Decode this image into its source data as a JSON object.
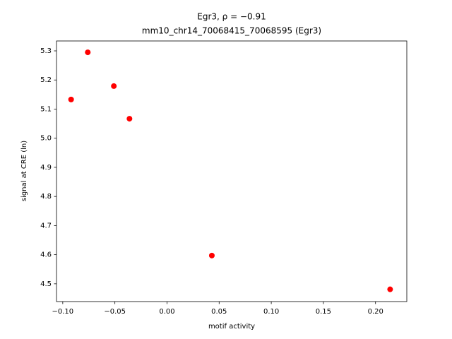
{
  "chart_data": {
    "type": "scatter",
    "title": "Egr3, ρ = −0.91",
    "subtitle": "mm10_chr14_70068415_70068595 (Egr3)",
    "x_label": "motif activity",
    "y_label": "signal at CRE (ln)",
    "color": "#ff0000",
    "x": [
      -0.092,
      -0.076,
      -0.051,
      -0.036,
      0.043,
      0.214
    ],
    "y": [
      5.133,
      5.295,
      5.179,
      5.067,
      4.597,
      4.481
    ],
    "xlim": [
      -0.106,
      0.23
    ],
    "ylim": [
      4.439,
      5.334
    ],
    "xticks": [
      {
        "value": -0.1,
        "label": "−0.10"
      },
      {
        "value": -0.05,
        "label": "−0.05"
      },
      {
        "value": 0,
        "label": "0.00"
      },
      {
        "value": 0.05,
        "label": "0.05"
      },
      {
        "value": 0.1,
        "label": "0.10"
      },
      {
        "value": 0.15,
        "label": "0.15"
      },
      {
        "value": 0.2,
        "label": "0.20"
      }
    ],
    "yticks": [
      4.5,
      4.6,
      4.7,
      4.8,
      4.9,
      {
        "value": 5,
        "label": "5.0"
      },
      5.1,
      5.2,
      5.3
    ],
    "grid": false
  }
}
